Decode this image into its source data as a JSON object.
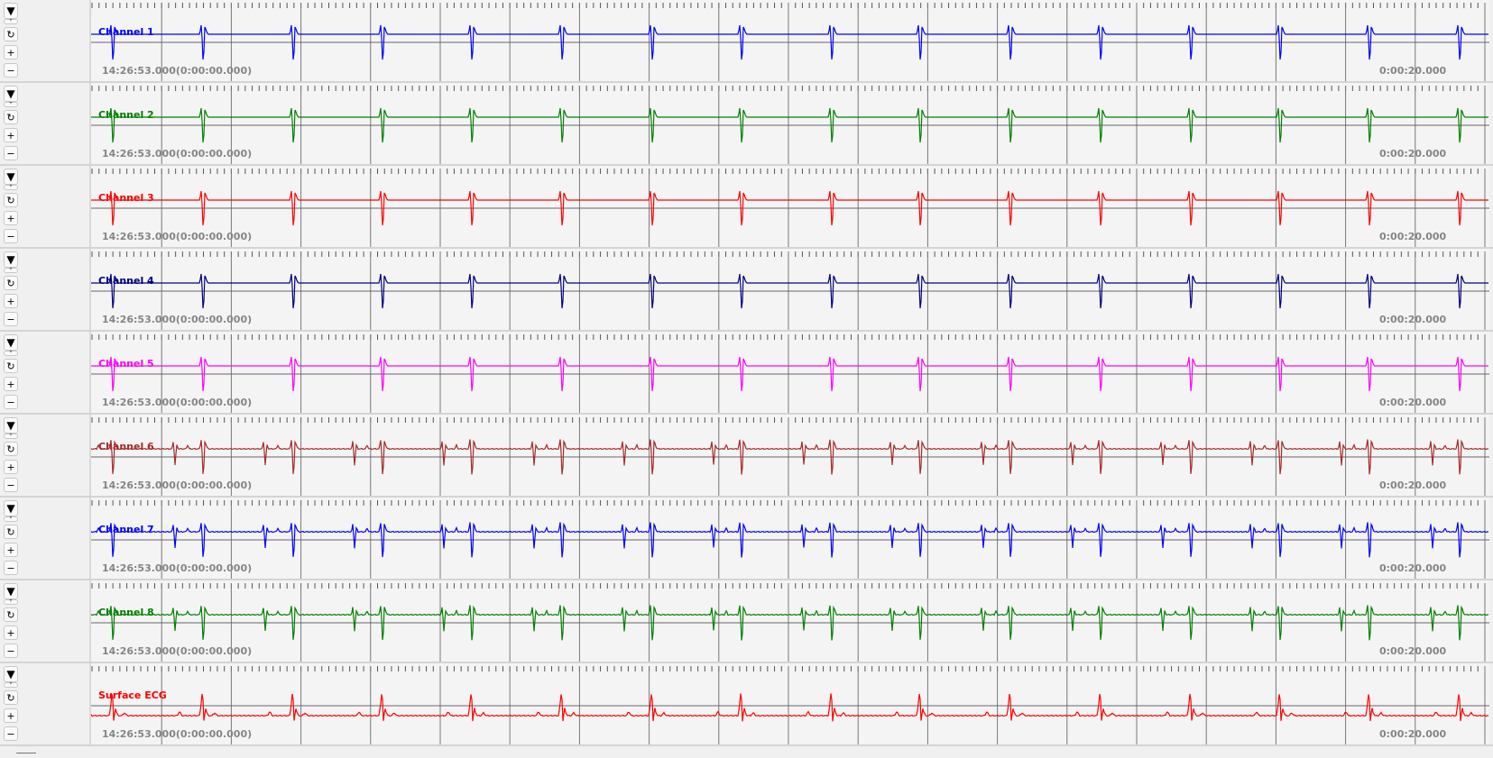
{
  "time_axis": {
    "start_label": "14:26:53.000(0:00:00.000)",
    "end_label": "0:00:20.000",
    "duration_s": 20,
    "major_tick_s": 1,
    "minor_ticks_per_major": 10
  },
  "controls": {
    "dropdown_icon": "▼",
    "small_icon": "ᵀ",
    "refresh_icon": "↻",
    "zoom_in_label": "+",
    "zoom_out_label": "−"
  },
  "ventricular_beats_s": [
    0.29,
    1.58,
    2.88,
    4.16,
    5.44,
    6.74,
    8.03,
    9.31,
    10.61,
    11.88,
    13.18,
    14.47,
    15.76,
    17.05,
    18.33,
    19.63
  ],
  "atrial_offset_s": -0.4,
  "channels": [
    {
      "name": "Channel 1",
      "color": "#0000ff",
      "atrial": false
    },
    {
      "name": "Channel 2",
      "color": "#008000",
      "atrial": false
    },
    {
      "name": "Channel 3",
      "color": "#ff0000",
      "atrial": false
    },
    {
      "name": "Channel 4",
      "color": "#000080",
      "atrial": false
    },
    {
      "name": "Channel 5",
      "color": "#ff00ff",
      "atrial": false
    },
    {
      "name": "Channel 6",
      "color": "#a52a2a",
      "atrial": true
    },
    {
      "name": "Channel 7",
      "color": "#0000ff",
      "atrial": true
    },
    {
      "name": "Channel 8",
      "color": "#008000",
      "atrial": true
    },
    {
      "name": "Surface ECG",
      "color": "#ff0000",
      "atrial": false,
      "surface": true
    }
  ]
}
